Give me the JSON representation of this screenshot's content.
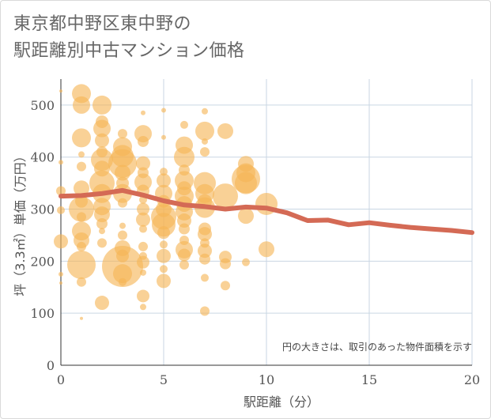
{
  "title_lines": [
    "東京都中野区東中野の",
    "駅距離別中古マンション価格"
  ],
  "colors": {
    "bubble": "#F5B556",
    "line": "#D46A55",
    "grid": "#c9d6e3",
    "text": "#555555"
  },
  "chart_data": {
    "type": "scatter",
    "title": "東京都中野区東中野の駅距離別中古マンション価格",
    "xlabel": "駅距離（分）",
    "ylabel": "坪（3.3㎡）単価（万円）",
    "xlim": [
      0,
      20
    ],
    "ylim": [
      0,
      550
    ],
    "xticks": [
      0,
      5,
      10,
      15,
      20
    ],
    "yticks": [
      0,
      100,
      200,
      300,
      400,
      500
    ],
    "grid": true,
    "annotation": "円の大きさは、取引のあった物件面積を示す",
    "bubbles": [
      {
        "x": 0,
        "y": 527,
        "s": 2
      },
      {
        "x": 0,
        "y": 390,
        "s": 3
      },
      {
        "x": 0,
        "y": 335,
        "s": 6
      },
      {
        "x": 0,
        "y": 298,
        "s": 5
      },
      {
        "x": 0,
        "y": 238,
        "s": 9
      },
      {
        "x": 0,
        "y": 175,
        "s": 3
      },
      {
        "x": 0,
        "y": 158,
        "s": 2
      },
      {
        "x": 1,
        "y": 522,
        "s": 12
      },
      {
        "x": 1,
        "y": 500,
        "s": 11
      },
      {
        "x": 1,
        "y": 437,
        "s": 12
      },
      {
        "x": 1,
        "y": 405,
        "s": 4
      },
      {
        "x": 1,
        "y": 382,
        "s": 6
      },
      {
        "x": 1,
        "y": 340,
        "s": 10
      },
      {
        "x": 1,
        "y": 315,
        "s": 8
      },
      {
        "x": 1,
        "y": 300,
        "s": 16
      },
      {
        "x": 1,
        "y": 285,
        "s": 6
      },
      {
        "x": 1,
        "y": 258,
        "s": 12
      },
      {
        "x": 1,
        "y": 240,
        "s": 10
      },
      {
        "x": 1,
        "y": 228,
        "s": 6
      },
      {
        "x": 1,
        "y": 193,
        "s": 18
      },
      {
        "x": 1,
        "y": 160,
        "s": 6
      },
      {
        "x": 1,
        "y": 90,
        "s": 2
      },
      {
        "x": 2,
        "y": 500,
        "s": 12
      },
      {
        "x": 2,
        "y": 468,
        "s": 8
      },
      {
        "x": 2,
        "y": 455,
        "s": 11
      },
      {
        "x": 2,
        "y": 432,
        "s": 9
      },
      {
        "x": 2,
        "y": 410,
        "s": 7
      },
      {
        "x": 2,
        "y": 395,
        "s": 14
      },
      {
        "x": 2,
        "y": 378,
        "s": 10
      },
      {
        "x": 2,
        "y": 350,
        "s": 16
      },
      {
        "x": 2,
        "y": 330,
        "s": 12
      },
      {
        "x": 2,
        "y": 305,
        "s": 11
      },
      {
        "x": 2,
        "y": 290,
        "s": 10
      },
      {
        "x": 2,
        "y": 272,
        "s": 7
      },
      {
        "x": 2,
        "y": 258,
        "s": 4
      },
      {
        "x": 2,
        "y": 235,
        "s": 6
      },
      {
        "x": 2,
        "y": 120,
        "s": 9
      },
      {
        "x": 3,
        "y": 445,
        "s": 6
      },
      {
        "x": 3,
        "y": 420,
        "s": 12
      },
      {
        "x": 3,
        "y": 402,
        "s": 14
      },
      {
        "x": 3,
        "y": 388,
        "s": 18
      },
      {
        "x": 3,
        "y": 370,
        "s": 10
      },
      {
        "x": 3,
        "y": 350,
        "s": 8
      },
      {
        "x": 3,
        "y": 330,
        "s": 12
      },
      {
        "x": 3,
        "y": 312,
        "s": 6
      },
      {
        "x": 3,
        "y": 268,
        "s": 4
      },
      {
        "x": 3,
        "y": 250,
        "s": 6
      },
      {
        "x": 3,
        "y": 225,
        "s": 10
      },
      {
        "x": 3,
        "y": 210,
        "s": 8
      },
      {
        "x": 3,
        "y": 190,
        "s": 26
      },
      {
        "x": 3,
        "y": 176,
        "s": 12
      },
      {
        "x": 3,
        "y": 160,
        "s": 5
      },
      {
        "x": 4,
        "y": 485,
        "s": 3
      },
      {
        "x": 4,
        "y": 445,
        "s": 11
      },
      {
        "x": 4,
        "y": 430,
        "s": 7
      },
      {
        "x": 4,
        "y": 388,
        "s": 9
      },
      {
        "x": 4,
        "y": 370,
        "s": 7
      },
      {
        "x": 4,
        "y": 352,
        "s": 11
      },
      {
        "x": 4,
        "y": 335,
        "s": 8
      },
      {
        "x": 4,
        "y": 318,
        "s": 5
      },
      {
        "x": 4,
        "y": 300,
        "s": 8
      },
      {
        "x": 4,
        "y": 280,
        "s": 9
      },
      {
        "x": 4,
        "y": 262,
        "s": 5
      },
      {
        "x": 4,
        "y": 228,
        "s": 6
      },
      {
        "x": 4,
        "y": 210,
        "s": 5
      },
      {
        "x": 4,
        "y": 198,
        "s": 8
      },
      {
        "x": 4,
        "y": 178,
        "s": 4
      },
      {
        "x": 4,
        "y": 133,
        "s": 8
      },
      {
        "x": 4,
        "y": 112,
        "s": 4
      },
      {
        "x": 5,
        "y": 490,
        "s": 3
      },
      {
        "x": 5,
        "y": 438,
        "s": 3
      },
      {
        "x": 5,
        "y": 372,
        "s": 5
      },
      {
        "x": 5,
        "y": 355,
        "s": 9
      },
      {
        "x": 5,
        "y": 330,
        "s": 11
      },
      {
        "x": 5,
        "y": 315,
        "s": 8
      },
      {
        "x": 5,
        "y": 300,
        "s": 10
      },
      {
        "x": 5,
        "y": 285,
        "s": 16
      },
      {
        "x": 5,
        "y": 270,
        "s": 15
      },
      {
        "x": 5,
        "y": 255,
        "s": 8
      },
      {
        "x": 5,
        "y": 232,
        "s": 5
      },
      {
        "x": 5,
        "y": 210,
        "s": 9
      },
      {
        "x": 5,
        "y": 185,
        "s": 5
      },
      {
        "x": 5,
        "y": 162,
        "s": 9
      },
      {
        "x": 6,
        "y": 462,
        "s": 5
      },
      {
        "x": 6,
        "y": 423,
        "s": 11
      },
      {
        "x": 6,
        "y": 400,
        "s": 13
      },
      {
        "x": 6,
        "y": 375,
        "s": 7
      },
      {
        "x": 6,
        "y": 355,
        "s": 12
      },
      {
        "x": 6,
        "y": 340,
        "s": 9
      },
      {
        "x": 6,
        "y": 325,
        "s": 12
      },
      {
        "x": 6,
        "y": 310,
        "s": 10
      },
      {
        "x": 6,
        "y": 295,
        "s": 11
      },
      {
        "x": 6,
        "y": 278,
        "s": 9
      },
      {
        "x": 6,
        "y": 262,
        "s": 7
      },
      {
        "x": 6,
        "y": 240,
        "s": 6
      },
      {
        "x": 6,
        "y": 222,
        "s": 11
      },
      {
        "x": 6,
        "y": 212,
        "s": 8
      },
      {
        "x": 6,
        "y": 193,
        "s": 6
      },
      {
        "x": 7,
        "y": 488,
        "s": 4
      },
      {
        "x": 7,
        "y": 450,
        "s": 12
      },
      {
        "x": 7,
        "y": 430,
        "s": 4
      },
      {
        "x": 7,
        "y": 410,
        "s": 6
      },
      {
        "x": 7,
        "y": 350,
        "s": 14
      },
      {
        "x": 7,
        "y": 330,
        "s": 12
      },
      {
        "x": 7,
        "y": 315,
        "s": 9
      },
      {
        "x": 7,
        "y": 303,
        "s": 13
      },
      {
        "x": 7,
        "y": 262,
        "s": 8
      },
      {
        "x": 7,
        "y": 252,
        "s": 9
      },
      {
        "x": 7,
        "y": 235,
        "s": 6
      },
      {
        "x": 7,
        "y": 220,
        "s": 9
      },
      {
        "x": 7,
        "y": 204,
        "s": 7
      },
      {
        "x": 7,
        "y": 168,
        "s": 5
      },
      {
        "x": 7,
        "y": 104,
        "s": 6
      },
      {
        "x": 8,
        "y": 450,
        "s": 10
      },
      {
        "x": 8,
        "y": 325,
        "s": 16
      },
      {
        "x": 8,
        "y": 208,
        "s": 8
      },
      {
        "x": 8,
        "y": 195,
        "s": 7
      },
      {
        "x": 8,
        "y": 153,
        "s": 6
      },
      {
        "x": 9,
        "y": 387,
        "s": 10
      },
      {
        "x": 9,
        "y": 370,
        "s": 12
      },
      {
        "x": 9,
        "y": 358,
        "s": 18
      },
      {
        "x": 9,
        "y": 350,
        "s": 14
      },
      {
        "x": 9,
        "y": 287,
        "s": 10
      },
      {
        "x": 9,
        "y": 198,
        "s": 5
      },
      {
        "x": 10,
        "y": 310,
        "s": 14
      },
      {
        "x": 10,
        "y": 223,
        "s": 10
      }
    ],
    "series": [
      {
        "x": [
          0,
          1,
          2,
          3,
          4,
          5,
          6,
          7,
          8,
          9,
          10,
          11,
          12,
          13,
          14,
          15,
          16,
          17,
          18,
          19,
          20
        ],
        "values": [
          325,
          326,
          330,
          336,
          327,
          316,
          308,
          305,
          300,
          304,
          302,
          293,
          278,
          279,
          270,
          274,
          269,
          265,
          262,
          259,
          255
        ]
      }
    ]
  }
}
